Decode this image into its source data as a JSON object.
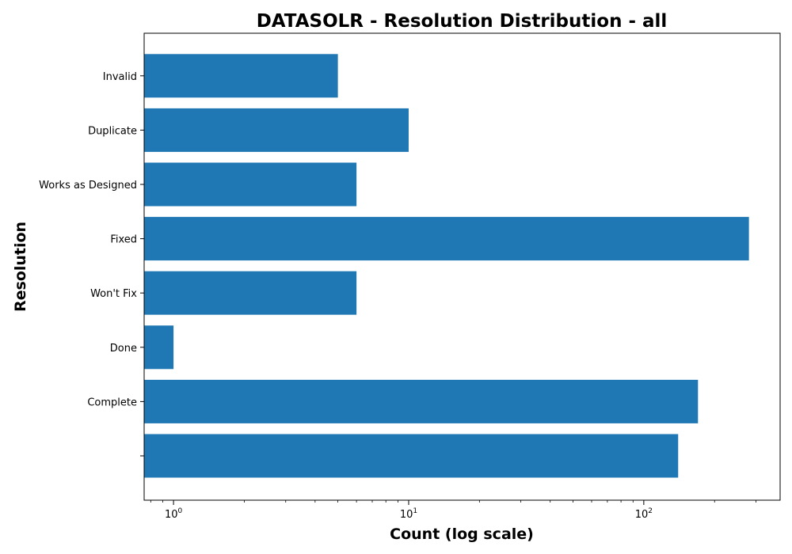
{
  "chart_data": {
    "type": "bar",
    "orientation": "horizontal",
    "title": "DATASOLR - Resolution Distribution - all",
    "xlabel": "Count (log scale)",
    "ylabel": "Resolution",
    "x_scale": "log",
    "xlim": [
      0.75,
      380
    ],
    "x_ticks": [
      {
        "value": 1,
        "base": "10",
        "exp": "0"
      },
      {
        "value": 10,
        "base": "10",
        "exp": "1"
      },
      {
        "value": 100,
        "base": "10",
        "exp": "2"
      }
    ],
    "categories": [
      "",
      "Complete",
      "Done",
      "Won't Fix",
      "Fixed",
      "Works as Designed",
      "Duplicate",
      "Invalid"
    ],
    "values": [
      140,
      170,
      1,
      6,
      280,
      6,
      10,
      5
    ],
    "bar_color": "#1f77b4",
    "grid": false,
    "legend": "none"
  }
}
